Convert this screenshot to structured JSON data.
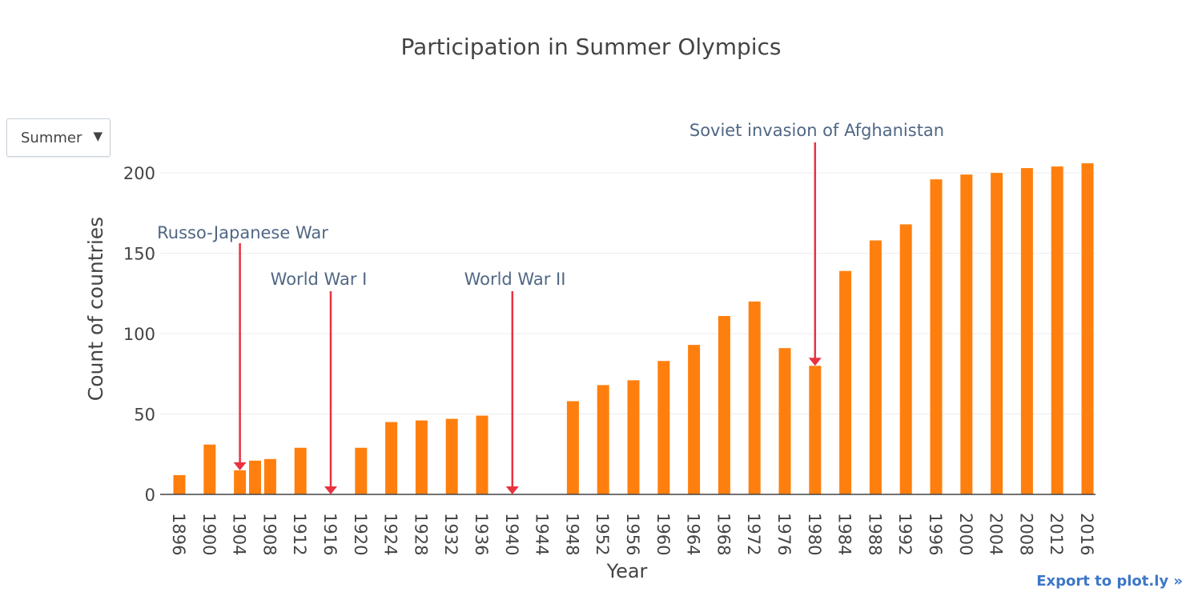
{
  "chart_title": "Participation in Summer Olympics",
  "dropdown": {
    "selected": "Summer",
    "arrow": "▼"
  },
  "export_link": "Export to plot.ly »",
  "colors": {
    "bar": "#ff7f0e",
    "annotation": "#e8323f",
    "grid": "#eeeeee",
    "text": "#444444",
    "annotation_text": "#506784",
    "link": "#3d77c6"
  },
  "chart_data": {
    "type": "bar",
    "title": "Participation in Summer Olympics",
    "xlabel": "Year",
    "ylabel": "Count of countries",
    "ylim": [
      0,
      215
    ],
    "yticks": [
      0,
      50,
      100,
      150,
      200
    ],
    "grid": true,
    "x": [
      1896,
      1900,
      1904,
      1906,
      1908,
      1912,
      1920,
      1924,
      1928,
      1932,
      1936,
      1948,
      1952,
      1956,
      1960,
      1964,
      1968,
      1972,
      1976,
      1980,
      1984,
      1988,
      1992,
      1996,
      2000,
      2004,
      2008,
      2012,
      2016
    ],
    "values": [
      12,
      31,
      15,
      21,
      22,
      29,
      29,
      45,
      46,
      47,
      49,
      58,
      68,
      71,
      83,
      93,
      111,
      120,
      91,
      80,
      139,
      158,
      168,
      196,
      199,
      200,
      203,
      204,
      206
    ],
    "xticks": [
      "1896",
      "1900",
      "1904",
      "1908",
      "1912",
      "1916",
      "1920",
      "1924",
      "1928",
      "1932",
      "1936",
      "1940",
      "1944",
      "1948",
      "1952",
      "1956",
      "1960",
      "1964",
      "1968",
      "1972",
      "1976",
      "1980",
      "1984",
      "1988",
      "1992",
      "1996",
      "2000",
      "2004",
      "2008",
      "2012",
      "2016"
    ],
    "annotations": [
      {
        "text": "Russo-Japanese War",
        "x": 1904,
        "y": 15
      },
      {
        "text": "World War I",
        "x": 1916,
        "y": 0
      },
      {
        "text": "World War II",
        "x": 1940,
        "y": 0
      },
      {
        "text": "Soviet invasion of Afghanistan",
        "x": 1980,
        "y": 80
      }
    ]
  }
}
